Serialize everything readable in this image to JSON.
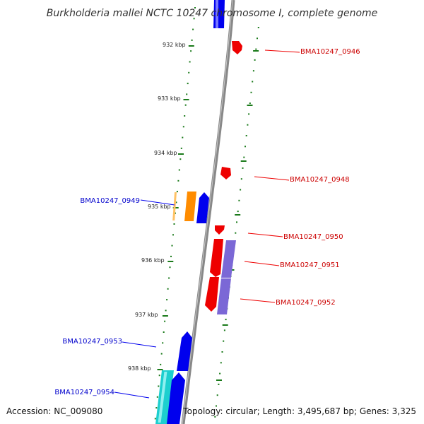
{
  "map": {
    "title": "Burkholderia mallei NCTC 10247 chromosome I, complete genome",
    "accession": "Accession: NC_009080",
    "topology": "Topology: circular; Length: 3,495,687 bp; Genes: 3,325",
    "colors": {
      "backbone": "#808080",
      "ticks": "#1a7a1a",
      "forward_strand": "#0000ee",
      "reverse_strand": "#ee0000",
      "orange_feature": "#ff8c00",
      "purple_feature": "#7b68d6",
      "cyan_feature": "#1ccfcf",
      "forward_label": "#0000cc",
      "reverse_label": "#cc0000"
    },
    "scale_labels": [
      "932 kbp",
      "933 kbp",
      "934 kbp",
      "935 kbp",
      "936 kbp",
      "937 kbp",
      "938 kbp"
    ],
    "gene_labels": [
      {
        "name": "BMA10247_0946",
        "strand": "reverse"
      },
      {
        "name": "BMA10247_0948",
        "strand": "reverse"
      },
      {
        "name": "BMA10247_0949",
        "strand": "forward"
      },
      {
        "name": "BMA10247_0950",
        "strand": "reverse"
      },
      {
        "name": "BMA10247_0951",
        "strand": "reverse"
      },
      {
        "name": "BMA10247_0952",
        "strand": "reverse"
      },
      {
        "name": "BMA10247_0953",
        "strand": "forward"
      },
      {
        "name": "BMA10247_0954",
        "strand": "forward"
      }
    ]
  }
}
